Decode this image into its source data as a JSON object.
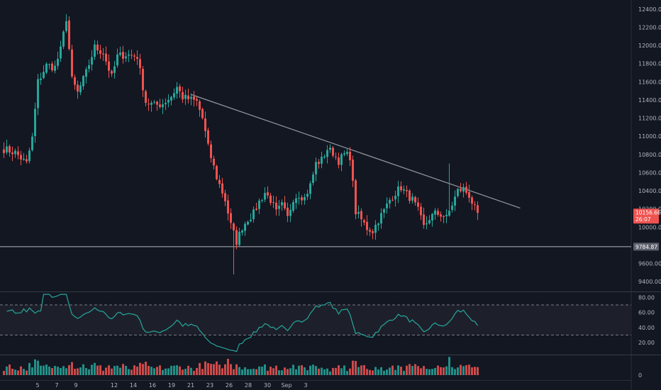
{
  "chart_data": [
    {
      "type": "candlestick",
      "name": "price",
      "x_tick_labels": [
        "5",
        "7",
        "9",
        "12",
        "14",
        "16",
        "19",
        "21",
        "23",
        "26",
        "28",
        "30",
        "Sep",
        "3"
      ],
      "y_tick_labels": [
        "12400.00",
        "12200.00",
        "12000.00",
        "11800.00",
        "11600.00",
        "11400.00",
        "11200.00",
        "11000.00",
        "10800.00",
        "10600.00",
        "10400.00",
        "10200.00",
        "10000.00",
        "9600.00",
        "9400.00"
      ],
      "ylim": [
        9300,
        12500
      ],
      "support_line": {
        "value": 9784.87,
        "label": "9784.87"
      },
      "trend_line": {
        "from": {
          "t": 66,
          "value": 11460
        },
        "to": {
          "t": 182,
          "value": 10210
        }
      },
      "last_price": {
        "label": "10156.66",
        "countdown": "26:07"
      },
      "colors": {
        "up": "#26a69a",
        "down": "#ef5350",
        "trend": "#9598a1",
        "support": "#b2b5be"
      },
      "keyframes": [
        [
          0,
          10860
        ],
        [
          4,
          10820
        ],
        [
          8,
          10700
        ],
        [
          10,
          10980
        ],
        [
          12,
          11600
        ],
        [
          15,
          11780
        ],
        [
          18,
          11760
        ],
        [
          20,
          11950
        ],
        [
          22,
          12300
        ],
        [
          24,
          11620
        ],
        [
          26,
          11480
        ],
        [
          29,
          11700
        ],
        [
          32,
          11980
        ],
        [
          35,
          11920
        ],
        [
          38,
          11650
        ],
        [
          40,
          11880
        ],
        [
          43,
          11900
        ],
        [
          47,
          11880
        ],
        [
          50,
          11380
        ],
        [
          53,
          11340
        ],
        [
          56,
          11360
        ],
        [
          59,
          11440
        ],
        [
          61,
          11540
        ],
        [
          63,
          11430
        ],
        [
          66,
          11400
        ],
        [
          68,
          11380
        ],
        [
          70,
          11200
        ],
        [
          72,
          10880
        ],
        [
          75,
          10550
        ],
        [
          78,
          10300
        ],
        [
          80,
          10020
        ],
        [
          82,
          9840
        ],
        [
          84,
          10000
        ],
        [
          86,
          10090
        ],
        [
          88,
          10150
        ],
        [
          90,
          10280
        ],
        [
          92,
          10380
        ],
        [
          94,
          10300
        ],
        [
          96,
          10160
        ],
        [
          98,
          10240
        ],
        [
          100,
          10100
        ],
        [
          102,
          10320
        ],
        [
          104,
          10360
        ],
        [
          106,
          10320
        ],
        [
          108,
          10460
        ],
        [
          110,
          10700
        ],
        [
          112,
          10740
        ],
        [
          114,
          10860
        ],
        [
          116,
          10820
        ],
        [
          118,
          10730
        ],
        [
          120,
          10800
        ],
        [
          122,
          10780
        ],
        [
          124,
          10170
        ],
        [
          126,
          10080
        ],
        [
          128,
          9990
        ],
        [
          130,
          9960
        ],
        [
          132,
          10080
        ],
        [
          134,
          10180
        ],
        [
          136,
          10300
        ],
        [
          138,
          10380
        ],
        [
          140,
          10440
        ],
        [
          142,
          10360
        ],
        [
          144,
          10300
        ],
        [
          146,
          10180
        ],
        [
          148,
          10000
        ],
        [
          150,
          10100
        ],
        [
          152,
          10150
        ],
        [
          154,
          10140
        ],
        [
          156,
          10100
        ],
        [
          158,
          10250
        ],
        [
          160,
          10400
        ],
        [
          162,
          10420
        ],
        [
          164,
          10350
        ],
        [
          166,
          10200
        ],
        [
          167,
          10157
        ]
      ]
    },
    {
      "type": "line",
      "name": "oscillator",
      "y_tick_labels": [
        "80.00",
        "60.00",
        "40.00",
        "20.00"
      ],
      "ylim": [
        5,
        86
      ],
      "band": [
        30,
        70
      ],
      "color": "#26a69a"
    },
    {
      "type": "bar",
      "name": "volume",
      "y_tick_labels": [
        "0"
      ],
      "ylim": [
        0,
        1
      ]
    }
  ]
}
